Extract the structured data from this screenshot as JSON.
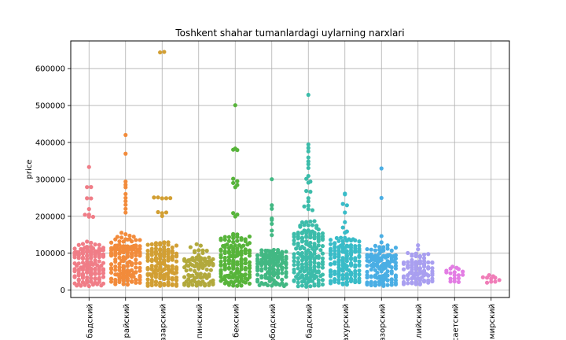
{
  "chart_data": {
    "type": "swarm",
    "title": "Toshkent shahar tumanlardagi uylarning narxlari",
    "xlabel": "",
    "ylabel": "price",
    "ylim": [
      -20000,
      675000
    ],
    "yticks": [
      0,
      100000,
      200000,
      300000,
      400000,
      500000,
      600000
    ],
    "ytick_labels": [
      "0",
      "100000",
      "200000",
      "300000",
      "400000",
      "500000",
      "600000"
    ],
    "grid": true,
    "categories": [
      "бадский",
      "райский",
      "азарский",
      "пинский",
      "бекский",
      "ободский",
      "бадский",
      "ахурский",
      "азорский",
      "лийский",
      "саетский",
      "мирский"
    ],
    "colors": [
      "#f07d87",
      "#f28b3b",
      "#d29f33",
      "#b2a93c",
      "#57b43a",
      "#42b883",
      "#3cbcaa",
      "#39bcc8",
      "#4aaee4",
      "#a99ff0",
      "#e37de4",
      "#f07db8"
    ],
    "series": [
      {
        "count": 170,
        "min": 12000,
        "median": 60000,
        "max": 335000,
        "outliers": [
          335000,
          280000,
          280000,
          250000,
          250000,
          220000,
          205000,
          203000,
          200000,
          198000
        ]
      },
      {
        "count": 170,
        "min": 15000,
        "median": 70000,
        "max": 420000,
        "outliers": [
          420000,
          370000,
          295000,
          285000,
          280000,
          260000,
          250000,
          240000,
          230000,
          220000,
          210000
        ]
      },
      {
        "count": 170,
        "min": 12000,
        "median": 60000,
        "max": 645000,
        "outliers": [
          645000,
          645000,
          250000,
          250000,
          250000,
          250000,
          250000,
          210000,
          210000,
          210000,
          200000
        ]
      },
      {
        "count": 100,
        "min": 12000,
        "median": 50000,
        "max": 125000,
        "outliers": [
          125000,
          120000,
          115000
        ]
      },
      {
        "count": 175,
        "min": 10000,
        "median": 70000,
        "max": 500000,
        "outliers": [
          500000,
          385000,
          380000,
          380000,
          300000,
          295000,
          290000,
          285000,
          280000,
          210000,
          205000,
          200000
        ]
      },
      {
        "count": 140,
        "min": 10000,
        "median": 50000,
        "max": 300000,
        "outliers": [
          300000,
          230000,
          220000,
          195000,
          190000,
          180000,
          160000,
          150000
        ]
      },
      {
        "count": 200,
        "min": 10000,
        "median": 85000,
        "max": 530000,
        "outliers": [
          530000,
          395000,
          385000,
          375000,
          360000,
          350000,
          340000,
          330000,
          310000,
          300000,
          295000,
          290000,
          270000,
          265000,
          250000,
          240000,
          230000,
          225000,
          220000,
          215000
        ]
      },
      {
        "count": 170,
        "min": 15000,
        "median": 65000,
        "max": 260000,
        "outliers": [
          260000,
          258000,
          232000,
          230000,
          210000,
          185000,
          170000,
          160000,
          155000
        ]
      },
      {
        "count": 130,
        "min": 12000,
        "median": 55000,
        "max": 330000,
        "outliers": [
          330000,
          250000,
          145000,
          130000,
          120000,
          112000,
          110000
        ]
      },
      {
        "count": 110,
        "min": 15000,
        "median": 45000,
        "max": 120000,
        "outliers": [
          120000,
          110000,
          100000,
          95000
        ]
      },
      {
        "count": 18,
        "min": 22000,
        "median": 35000,
        "max": 62000,
        "outliers": [
          62000,
          47000,
          45000,
          40000
        ]
      },
      {
        "count": 10,
        "min": 20000,
        "median": 30000,
        "max": 40000,
        "outliers": [
          40000,
          35000,
          33000
        ]
      }
    ]
  }
}
